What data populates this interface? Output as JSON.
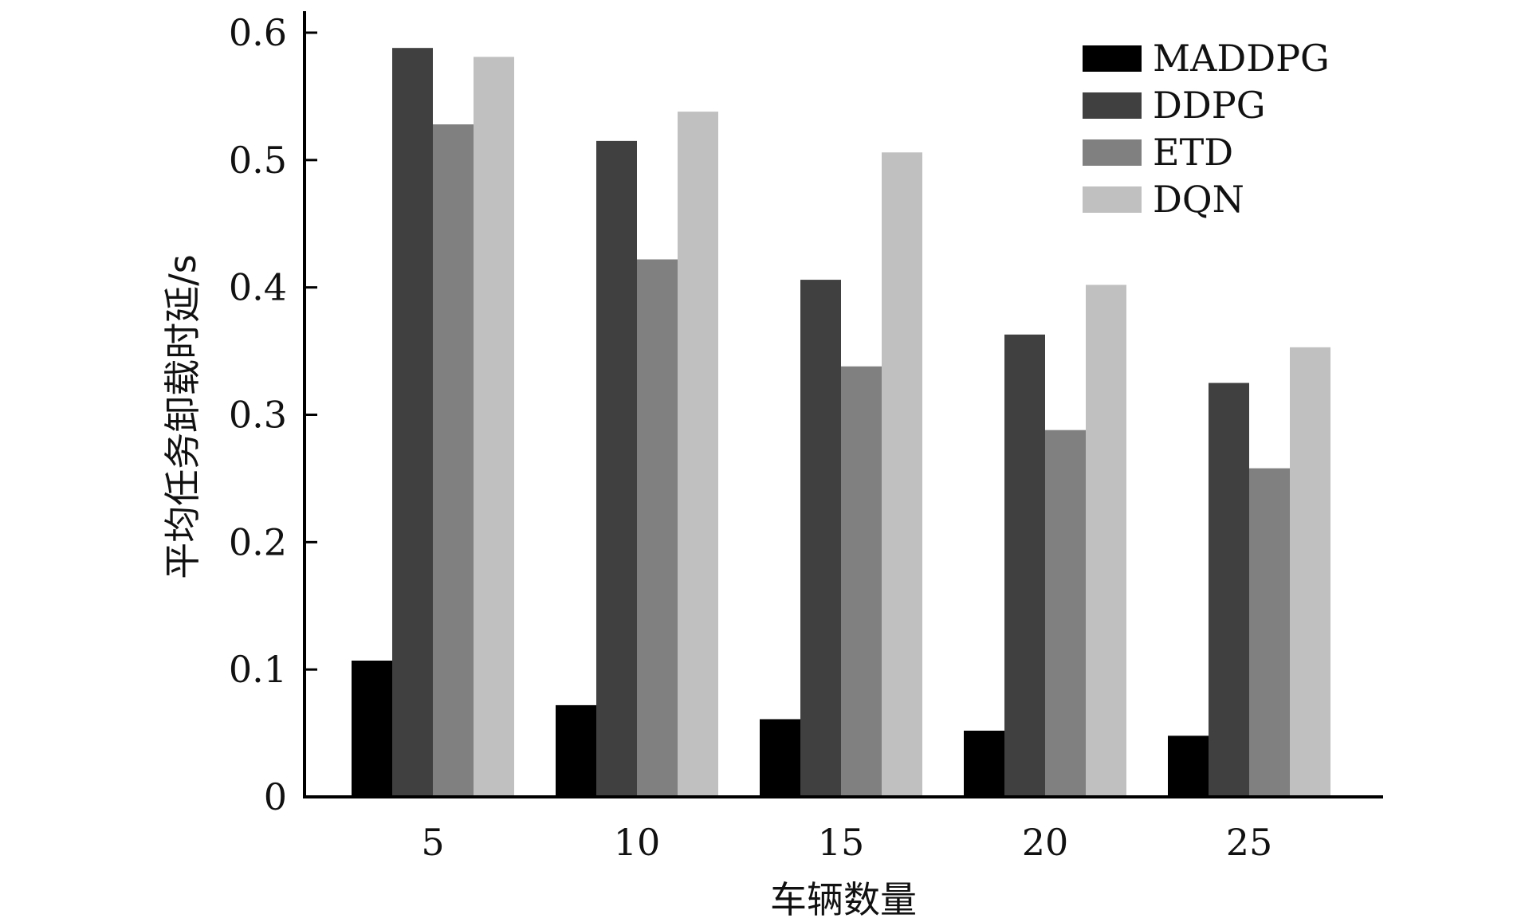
{
  "chart_data": {
    "type": "bar",
    "title": "",
    "xlabel": "车辆数量",
    "ylabel": "平均任务卸载时延/s",
    "categories": [
      "5",
      "10",
      "15",
      "20",
      "25"
    ],
    "ylim": [
      0,
      0.6
    ],
    "yticks": [
      "0",
      "0.1",
      "0.2",
      "0.3",
      "0.4",
      "0.5",
      "0.6"
    ],
    "grid": false,
    "legend_position": "top-right",
    "series": [
      {
        "name": "MADDPG",
        "color": "#000000",
        "values": [
          0.107,
          0.072,
          0.061,
          0.052,
          0.048
        ]
      },
      {
        "name": "DDPG",
        "color": "#404040",
        "values": [
          0.588,
          0.515,
          0.406,
          0.363,
          0.325
        ]
      },
      {
        "name": "ETD",
        "color": "#808080",
        "values": [
          0.528,
          0.422,
          0.338,
          0.288,
          0.258
        ]
      },
      {
        "name": "DQN",
        "color": "#c0c0c0",
        "values": [
          0.581,
          0.538,
          0.506,
          0.402,
          0.353
        ]
      }
    ]
  }
}
